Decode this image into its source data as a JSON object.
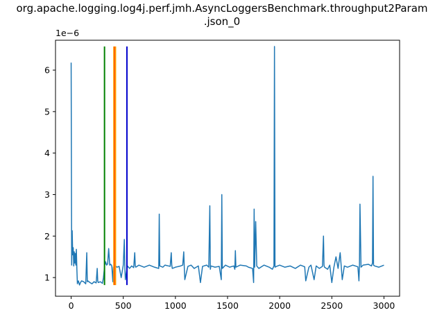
{
  "chart_data": {
    "type": "line",
    "title_line1": "org.apache.logging.log4j.perf.jmh.AsyncLoggersBenchmark.throughput2Param",
    "title_line2": ".json_0",
    "offset_text": "1e−6",
    "xlim": [
      -150,
      3150
    ],
    "ylim": [
      0.55,
      6.72
    ],
    "x_ticks": [
      0,
      500,
      1000,
      1500,
      2000,
      2500,
      3000
    ],
    "y_ticks": [
      1,
      2,
      3,
      4,
      5,
      6
    ],
    "x_tick_labels": [
      "0",
      "500",
      "1000",
      "1500",
      "2000",
      "2500",
      "3000"
    ],
    "y_tick_labels": [
      "1",
      "2",
      "3",
      "4",
      "5",
      "6"
    ],
    "series": [
      {
        "color": "#1f77b4",
        "x": [
          0,
          5,
          10,
          15,
          20,
          25,
          30,
          35,
          40,
          45,
          50,
          55,
          60,
          65,
          70,
          80,
          90,
          100,
          120,
          140,
          150,
          155,
          160,
          180,
          200,
          220,
          240,
          250,
          255,
          260,
          280,
          300,
          310,
          320,
          322,
          325,
          330,
          340,
          350,
          360,
          370,
          380,
          390,
          400,
          405,
          410,
          420,
          430,
          440,
          460,
          480,
          500,
          510,
          515,
          520,
          540,
          560,
          580,
          600,
          610,
          615,
          620,
          650,
          700,
          750,
          800,
          840,
          845,
          850,
          880,
          900,
          950,
          960,
          965,
          970,
          1000,
          1050,
          1070,
          1080,
          1085,
          1090,
          1120,
          1150,
          1180,
          1200,
          1220,
          1240,
          1260,
          1300,
          1320,
          1330,
          1335,
          1340,
          1380,
          1420,
          1440,
          1445,
          1450,
          1480,
          1520,
          1560,
          1570,
          1575,
          1580,
          1620,
          1680,
          1700,
          1740,
          1750,
          1755,
          1760,
          1770,
          1780,
          1800,
          1850,
          1900,
          1930,
          1945,
          1950,
          1955,
          1970,
          2000,
          2050,
          2100,
          2150,
          2200,
          2240,
          2250,
          2280,
          2300,
          2330,
          2350,
          2380,
          2410,
          2420,
          2425,
          2430,
          2460,
          2480,
          2500,
          2520,
          2540,
          2560,
          2580,
          2600,
          2620,
          2650,
          2700,
          2750,
          2760,
          2765,
          2770,
          2780,
          2800,
          2850,
          2880,
          2890,
          2895,
          2900,
          2910,
          2950,
          3000
        ],
        "y": [
          6.18,
          1.3,
          2.13,
          1.55,
          1.72,
          1.28,
          1.62,
          1.35,
          1.58,
          1.3,
          1.68,
          1.2,
          0.85,
          0.9,
          0.92,
          0.82,
          0.88,
          0.92,
          0.9,
          0.85,
          1.6,
          0.9,
          0.92,
          0.88,
          0.85,
          0.9,
          0.87,
          1.22,
          0.92,
          0.88,
          0.9,
          0.86,
          1.0,
          1.25,
          1.4,
          1.32,
          1.38,
          1.3,
          1.33,
          1.7,
          1.3,
          1.32,
          1.28,
          0.9,
          1.25,
          0.85,
          1.22,
          1.27,
          1.25,
          1.27,
          1.0,
          1.3,
          1.92,
          1.25,
          0.95,
          1.28,
          1.22,
          1.28,
          1.24,
          1.6,
          1.28,
          1.25,
          1.3,
          1.25,
          1.3,
          1.25,
          1.22,
          2.53,
          1.28,
          1.25,
          1.3,
          1.27,
          1.6,
          1.3,
          1.22,
          1.25,
          1.28,
          1.3,
          1.62,
          1.25,
          0.95,
          1.27,
          1.3,
          1.22,
          1.25,
          1.28,
          0.88,
          1.27,
          1.3,
          1.25,
          2.73,
          1.2,
          1.28,
          1.25,
          1.27,
          0.95,
          3.0,
          1.22,
          1.3,
          1.25,
          1.28,
          1.2,
          1.65,
          1.25,
          1.3,
          1.28,
          1.25,
          1.22,
          0.88,
          2.65,
          1.25,
          2.35,
          1.28,
          1.22,
          1.3,
          1.25,
          1.2,
          1.28,
          6.57,
          1.25,
          1.27,
          1.3,
          1.25,
          1.28,
          1.22,
          1.3,
          1.26,
          0.92,
          1.25,
          1.3,
          0.95,
          1.28,
          1.22,
          1.27,
          2.0,
          1.3,
          1.25,
          1.2,
          1.3,
          0.88,
          1.25,
          1.5,
          1.22,
          1.6,
          0.95,
          1.28,
          1.25,
          1.3,
          1.26,
          0.92,
          1.28,
          2.77,
          1.25,
          1.3,
          1.32,
          1.28,
          1.35,
          3.44,
          1.3,
          1.28,
          1.25,
          1.3
        ]
      }
    ],
    "vertical_lines": [
      {
        "x": 320,
        "color": "#008000"
      },
      {
        "x": 410,
        "color": "#ffa500"
      },
      {
        "x": 420,
        "color": "#ff0000"
      },
      {
        "x": 425,
        "color": "#ffa500"
      },
      {
        "x": 535,
        "color": "#0000cd"
      }
    ],
    "vline_range": [
      0.82,
      6.57
    ],
    "grid": false,
    "legend": "none"
  }
}
